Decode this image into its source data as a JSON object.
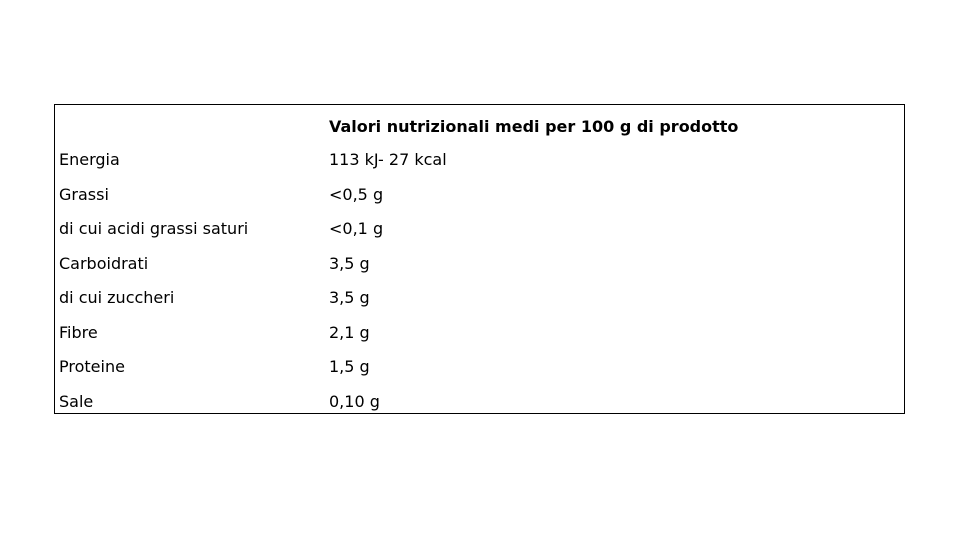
{
  "table": {
    "header": "Valori nutrizionali medi per 100 g di prodotto",
    "rows": [
      [
        "Energia",
        "113 kJ- 27 kcal"
      ],
      [
        "Grassi",
        "<0,5 g"
      ],
      [
        "di cui acidi grassi saturi",
        "<0,1 g"
      ],
      [
        "Carboidrati",
        "3,5 g"
      ],
      [
        "di cui zuccheri",
        "3,5 g"
      ],
      [
        "Fibre",
        "2,1 g"
      ],
      [
        "Proteine",
        "1,5 g"
      ],
      [
        "Sale",
        "0,10 g"
      ]
    ]
  }
}
